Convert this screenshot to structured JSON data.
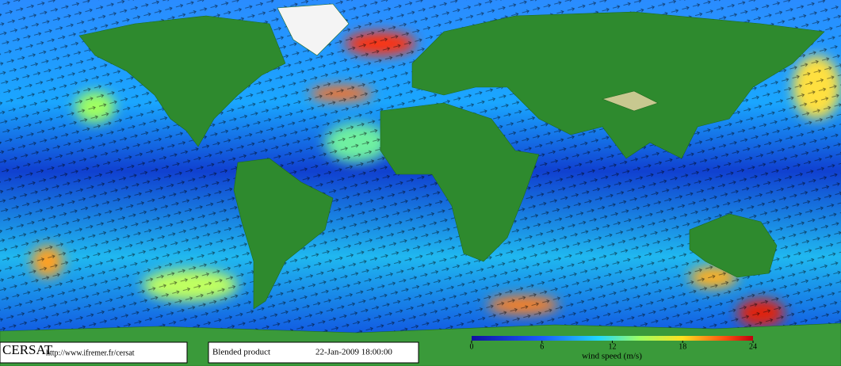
{
  "logo": "CERSAT",
  "url": "http://www.ifremer.fr/cersat",
  "product": "Blended product",
  "timestamp": "22-Jan-2009 18:00:00",
  "colorbar": {
    "label": "wind speed (m/s)",
    "range": [
      0,
      24
    ],
    "ticks": [
      0,
      6,
      12,
      18,
      24
    ]
  }
}
